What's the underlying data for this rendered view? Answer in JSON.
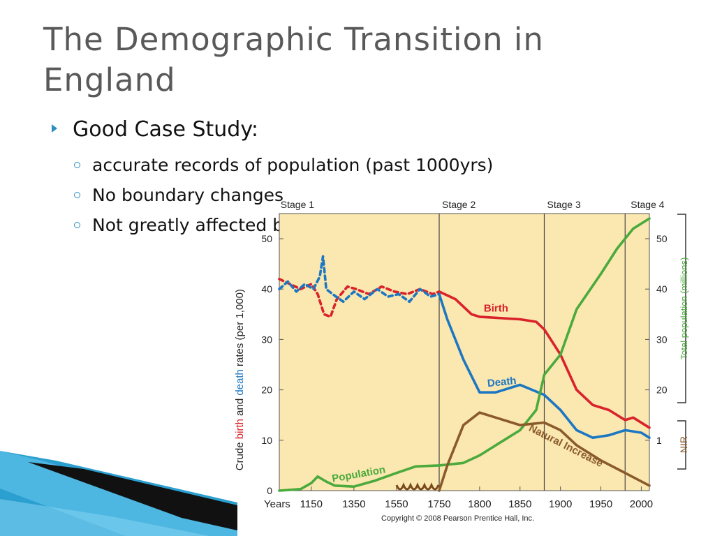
{
  "slide": {
    "title": "The Demographic Transition in England",
    "bullets": [
      {
        "level": 1,
        "text": "Good Case Study:"
      },
      {
        "level": 2,
        "text": "accurate records of population (past 1000yrs)"
      },
      {
        "level": 2,
        "text": "No boundary changes"
      },
      {
        "level": 2,
        "text": "Not greatly affected by migration"
      }
    ],
    "colors": {
      "title": "#595959",
      "bullet": "#2d8fc0",
      "deco_blue": "#2a9fd0",
      "deco_dark": "#111111"
    }
  },
  "chart_data": {
    "type": "line",
    "x_axis": {
      "label": "Years",
      "ticks": [
        1150,
        1350,
        1550,
        1750,
        1800,
        1850,
        1900,
        1950,
        2000
      ]
    },
    "y_left": {
      "label_parts": [
        "Crude ",
        "birth",
        " and ",
        "death",
        " rates (per 1,000)"
      ],
      "ticks": [
        0,
        10,
        20,
        30,
        40,
        50
      ],
      "range": [
        0,
        55
      ]
    },
    "y_right_population": {
      "label": "Total population (millions)",
      "ticks": [
        20,
        30,
        40,
        50
      ]
    },
    "y_right_nir": {
      "label": "NIR",
      "ticks": [
        1
      ]
    },
    "stages": [
      "Stage 1",
      "Stage 2",
      "Stage 3",
      "Stage 4"
    ],
    "stage_boundaries": [
      1750,
      1880,
      1980
    ],
    "series": [
      {
        "name": "Birth",
        "color": "#d9222a",
        "values": [
          [
            1750,
            39.5
          ],
          [
            1770,
            38
          ],
          [
            1790,
            35
          ],
          [
            1800,
            34.5
          ],
          [
            1850,
            34
          ],
          [
            1870,
            33.5
          ],
          [
            1880,
            32
          ],
          [
            1900,
            27
          ],
          [
            1920,
            20
          ],
          [
            1940,
            17
          ],
          [
            1960,
            16
          ],
          [
            1980,
            14
          ],
          [
            1990,
            14.5
          ],
          [
            2010,
            12.5
          ]
        ]
      },
      {
        "name": "Death",
        "color": "#1c77c3",
        "values": [
          [
            1750,
            39
          ],
          [
            1760,
            34
          ],
          [
            1780,
            26
          ],
          [
            1800,
            19.5
          ],
          [
            1820,
            19.5
          ],
          [
            1850,
            21
          ],
          [
            1880,
            19
          ],
          [
            1900,
            16
          ],
          [
            1920,
            12
          ],
          [
            1940,
            10.5
          ],
          [
            1960,
            11
          ],
          [
            1980,
            12
          ],
          [
            2000,
            11.5
          ],
          [
            2010,
            10.5
          ]
        ]
      },
      {
        "name": "Population",
        "color": "#4aaa3c",
        "values": [
          [
            1000,
            0
          ],
          [
            1100,
            0.3
          ],
          [
            1150,
            1.5
          ],
          [
            1180,
            2.8
          ],
          [
            1220,
            1.8
          ],
          [
            1260,
            1
          ],
          [
            1350,
            0.8
          ],
          [
            1450,
            2
          ],
          [
            1550,
            3.5
          ],
          [
            1640,
            4.8
          ],
          [
            1750,
            5
          ],
          [
            1780,
            5.5
          ],
          [
            1800,
            7
          ],
          [
            1830,
            10
          ],
          [
            1850,
            12
          ],
          [
            1870,
            16
          ],
          [
            1880,
            23
          ],
          [
            1900,
            27
          ],
          [
            1920,
            36
          ],
          [
            1950,
            43
          ],
          [
            1970,
            48
          ],
          [
            1990,
            52
          ],
          [
            2010,
            54
          ]
        ]
      },
      {
        "name": "Natural Increase",
        "color": "#8a5a2b",
        "values": [
          [
            1750,
            0
          ],
          [
            1760,
            5
          ],
          [
            1780,
            13
          ],
          [
            1800,
            15.5
          ],
          [
            1820,
            14.5
          ],
          [
            1850,
            13
          ],
          [
            1880,
            13.5
          ],
          [
            1900,
            12
          ],
          [
            1920,
            9
          ],
          [
            1950,
            6
          ],
          [
            1980,
            3.5
          ],
          [
            2010,
            1
          ]
        ]
      },
      {
        "name": "Birth (Stage 1)",
        "color": "#d9222a",
        "dashed": true,
        "values": [
          [
            1000,
            42
          ],
          [
            1050,
            41
          ],
          [
            1100,
            40
          ],
          [
            1150,
            41
          ],
          [
            1180,
            39
          ],
          [
            1210,
            35
          ],
          [
            1240,
            34.5
          ],
          [
            1270,
            38
          ],
          [
            1320,
            40.5
          ],
          [
            1360,
            40
          ],
          [
            1420,
            39
          ],
          [
            1480,
            40.5
          ],
          [
            1540,
            39.5
          ],
          [
            1600,
            39
          ],
          [
            1660,
            40
          ],
          [
            1720,
            39
          ],
          [
            1750,
            39.5
          ]
        ]
      },
      {
        "name": "Death (Stage 1)",
        "color": "#1c77c3",
        "dashed": true,
        "values": [
          [
            1000,
            40
          ],
          [
            1040,
            41.5
          ],
          [
            1080,
            39.5
          ],
          [
            1120,
            41
          ],
          [
            1160,
            40
          ],
          [
            1190,
            42.5
          ],
          [
            1205,
            46.5
          ],
          [
            1220,
            40
          ],
          [
            1250,
            39
          ],
          [
            1300,
            37.5
          ],
          [
            1350,
            39.5
          ],
          [
            1400,
            38
          ],
          [
            1460,
            40
          ],
          [
            1510,
            38.5
          ],
          [
            1560,
            39
          ],
          [
            1610,
            37.5
          ],
          [
            1660,
            40
          ],
          [
            1710,
            38.5
          ],
          [
            1750,
            39
          ]
        ]
      }
    ],
    "annotations": [
      "Birth",
      "Death",
      "Population",
      "Natural Increase"
    ],
    "copyright": "Copyright © 2008 Pearson Prentice Hall, Inc."
  }
}
